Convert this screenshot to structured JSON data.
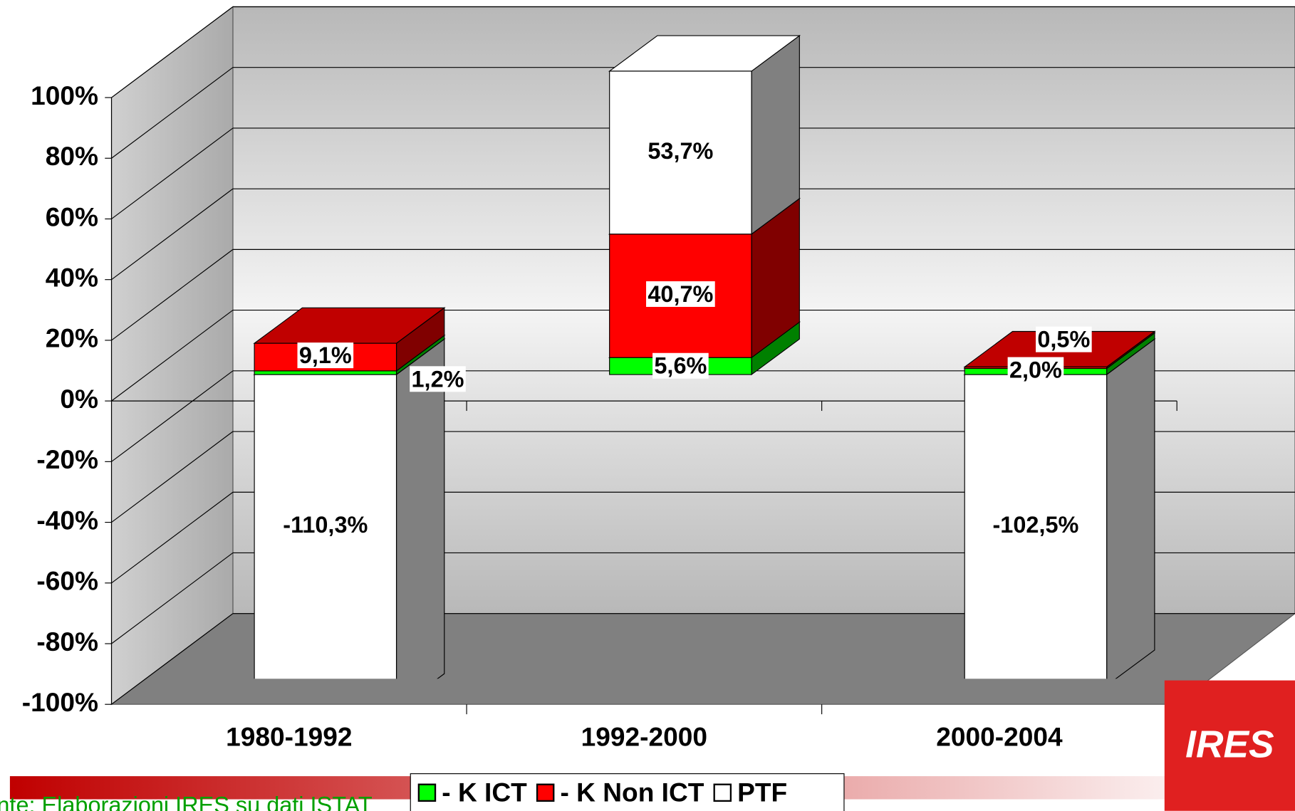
{
  "chart_data": {
    "type": "bar3d_stacked",
    "categories": [
      "1980-1992",
      "1992-2000",
      "2000-2004"
    ],
    "series": [
      {
        "name": "- K ICT",
        "color": "#00ff00",
        "values": [
          1.2,
          5.6,
          2.0
        ],
        "value_labels": [
          "1,2%",
          "5,6%",
          "2,0%"
        ]
      },
      {
        "name": "- K Non ICT",
        "color": "#ff0000",
        "values": [
          9.1,
          40.7,
          0.5
        ],
        "value_labels": [
          "9,1%",
          "40,7%",
          "0,5%"
        ]
      },
      {
        "name": "PTF",
        "color": "#ffffff",
        "values": [
          -110.3,
          53.7,
          -102.5
        ],
        "value_labels": [
          "-110,3%",
          "53,7%",
          "-102,5%"
        ]
      }
    ],
    "ylim": [
      -100,
      100
    ],
    "yticks": [
      {
        "value": -100,
        "label": "-100%"
      },
      {
        "value": -80,
        "label": "-80%"
      },
      {
        "value": -60,
        "label": "-60%"
      },
      {
        "value": -40,
        "label": "-40%"
      },
      {
        "value": -20,
        "label": "-20%"
      },
      {
        "value": 0,
        "label": "0%"
      },
      {
        "value": 20,
        "label": "20%"
      },
      {
        "value": 40,
        "label": "40%"
      },
      {
        "value": 60,
        "label": "60%"
      },
      {
        "value": 80,
        "label": "80%"
      },
      {
        "value": 100,
        "label": "100%"
      }
    ],
    "grid": true,
    "legend": "bottom",
    "source": "nte: Elaborazioni IRES su dati ISTAT",
    "logo": "IRES"
  }
}
